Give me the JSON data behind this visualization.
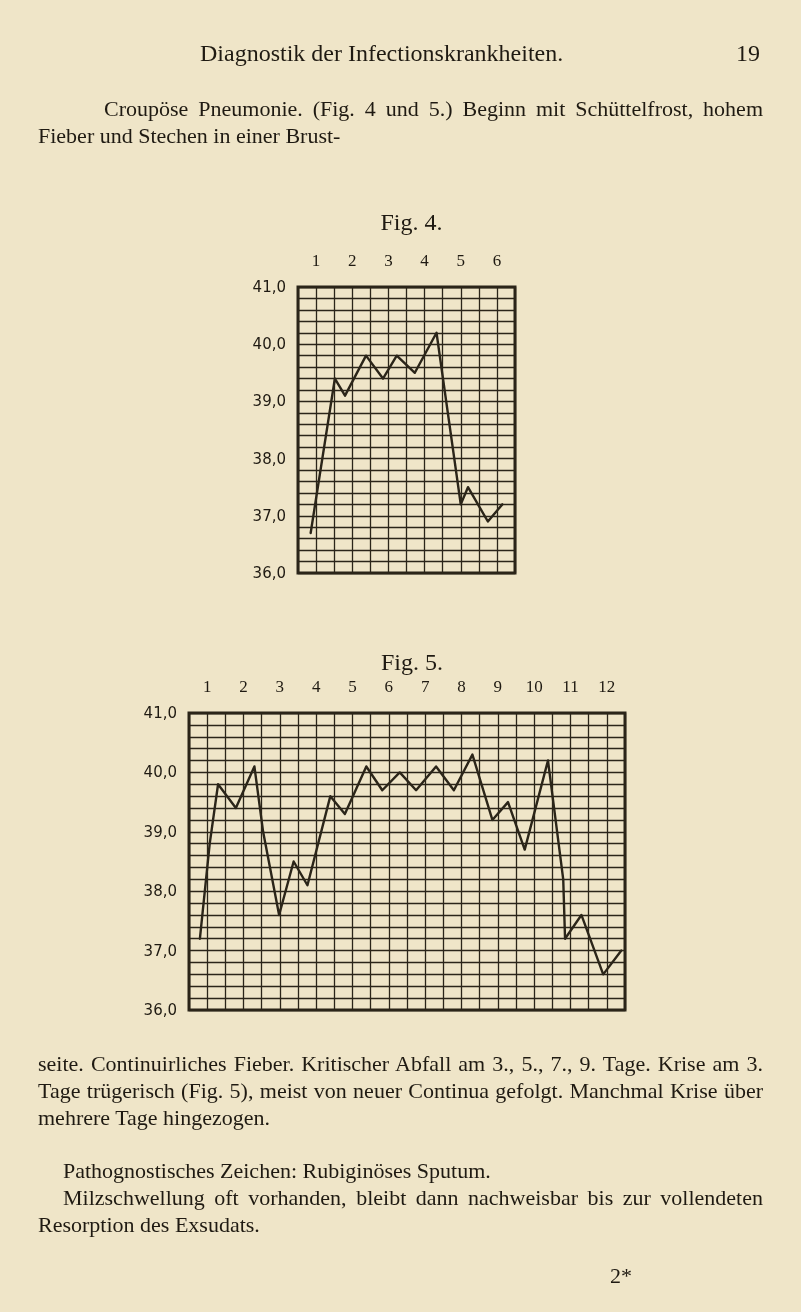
{
  "chart_data": [
    {
      "type": "line",
      "title": "Fig. 4.",
      "annotations": [
        "Diagnostik der Infectionskrankheiten.",
        "19",
        "Croupöse Pneumonie. (Fig. 4 und 5.) Beginn mit Schüttelfrost, hohem Fieber und Stechen in einer Brust-"
      ],
      "x": [
        0.85,
        1.52,
        1.8,
        2.38,
        2.85,
        3.23,
        3.73,
        4.33,
        5.0,
        5.2,
        5.75,
        6.15
      ],
      "series": [
        {
          "color": "#2b2519",
          "values": [
            36.7,
            39.4,
            39.1,
            39.8,
            39.4,
            39.8,
            39.5,
            40.2,
            37.2,
            37.5,
            36.9,
            37.2
          ]
        }
      ],
      "xlim": [
        0.5,
        6.5
      ],
      "xticks": [
        1,
        2,
        3,
        4,
        5,
        6
      ],
      "ylim": [
        36,
        41
      ],
      "yticks": [
        {
          "value": 36,
          "label": "36,0"
        },
        {
          "value": 37,
          "label": "37,0"
        },
        {
          "value": 38,
          "label": "38,0"
        },
        {
          "value": 39,
          "label": "39,0"
        },
        {
          "value": 40,
          "label": "40,0"
        },
        {
          "value": 41,
          "label": "41,0"
        }
      ],
      "grid": true,
      "marker": "none",
      "line_style": "solid"
    },
    {
      "type": "line",
      "title": "Fig. 5.",
      "annotations": [
        "seite. Continuirliches Fieber. Kritischer Abfall am 3., 5., 7., 9. Tage. Krise am 3. Tage trügerisch (Fig. 5), meist von neuer Continua gefolgt. Manchmal Krise über mehrere Tage hingezogen.",
        "Pathognostisches Zeichen: Rubiginöses Sputum.",
        "Milzschwellung oft vorhanden, bleibt dann nachweisbar bis zur vollendeten Resorption des Exsudats.",
        "2*"
      ],
      "x": [
        0.8,
        1.07,
        1.3,
        1.79,
        2.3,
        2.54,
        2.98,
        3.38,
        3.76,
        4.39,
        4.79,
        5.38,
        5.82,
        6.3,
        6.75,
        7.3,
        7.79,
        8.3,
        8.85,
        9.28,
        9.74,
        10.38,
        10.8,
        10.85,
        11.3,
        11.9,
        12.4
      ],
      "series": [
        {
          "color": "#2b2519",
          "values": [
            37.2,
            38.8,
            39.8,
            39.4,
            40.1,
            39.0,
            37.6,
            38.5,
            38.1,
            39.6,
            39.3,
            40.1,
            39.7,
            40.0,
            39.7,
            40.1,
            39.7,
            40.3,
            39.2,
            39.5,
            38.7,
            40.2,
            38.2,
            37.2,
            37.6,
            36.6,
            37.0
          ]
        }
      ],
      "xlim": [
        0.5,
        12.5
      ],
      "xticks": [
        1,
        2,
        3,
        4,
        5,
        6,
        7,
        8,
        9,
        10,
        11,
        12
      ],
      "ylim": [
        36,
        41
      ],
      "yticks": [
        {
          "value": 36,
          "label": "36,0"
        },
        {
          "value": 37,
          "label": "37,0"
        },
        {
          "value": 38,
          "label": "38,0"
        },
        {
          "value": 39,
          "label": "39,0"
        },
        {
          "value": 40,
          "label": "40,0"
        },
        {
          "value": 41,
          "label": "41,0"
        }
      ],
      "grid": true,
      "marker": "none",
      "line_style": "solid"
    }
  ]
}
